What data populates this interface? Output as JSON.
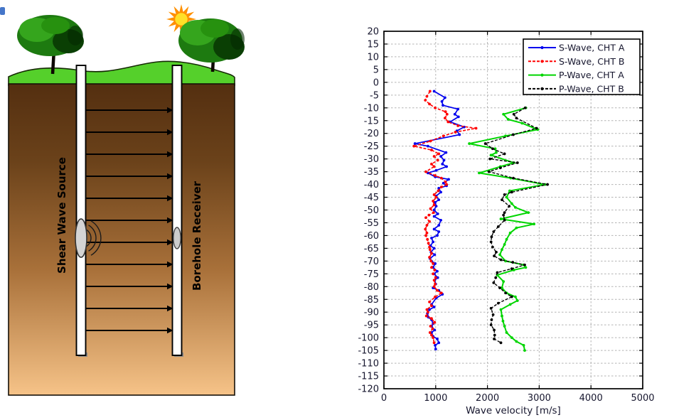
{
  "diagram": {
    "source_label": "Shear Wave Source",
    "receiver_label": "Borehole Receiver",
    "arrow_count": 11,
    "colors": {
      "grass": "#55d02b",
      "soil_top": "#542f10",
      "soil_bottom": "#f6c388",
      "foliage": "#1d7a10",
      "foliage_shadow": "#0a3f04",
      "foliage_highlight": "#35a51d",
      "sun_core": "#ffe028",
      "sun_rays": "#ff9000",
      "borehole_fill": "#ffffff",
      "transducer_fill": "#d4d4d4",
      "corner_mark": "#4576c9"
    }
  },
  "chart_data": {
    "type": "line",
    "title": "",
    "xlabel": "Wave velocity [m/s]",
    "ylabel": "",
    "xlim": [
      0,
      5000
    ],
    "ylim": [
      -120,
      20
    ],
    "x_ticks": [
      0,
      1000,
      2000,
      3000,
      4000,
      5000
    ],
    "y_tick_step": 5,
    "grid": true,
    "legend_position": "top-right",
    "series": [
      {
        "name": "S-Wave, CHT A",
        "color": "#0000ee",
        "dash": "solid",
        "width": 1.7,
        "marker": "dot",
        "points": [
          [
            970,
            -3.5
          ],
          [
            1180,
            -6
          ],
          [
            1120,
            -7.5
          ],
          [
            1140,
            -9
          ],
          [
            1430,
            -10.5
          ],
          [
            1370,
            -12.5
          ],
          [
            1440,
            -13.5
          ],
          [
            1280,
            -15.5
          ],
          [
            1550,
            -17.5
          ],
          [
            1410,
            -19
          ],
          [
            1460,
            -20.5
          ],
          [
            600,
            -24
          ],
          [
            850,
            -25
          ],
          [
            1200,
            -27.5
          ],
          [
            1100,
            -29
          ],
          [
            1160,
            -30.5
          ],
          [
            1130,
            -32
          ],
          [
            1210,
            -33
          ],
          [
            1010,
            -34.5
          ],
          [
            850,
            -35.5
          ],
          [
            990,
            -37
          ],
          [
            1250,
            -38
          ],
          [
            1150,
            -39.5
          ],
          [
            1210,
            -40.5
          ],
          [
            1060,
            -41.5
          ],
          [
            1100,
            -43
          ],
          [
            1010,
            -44.5
          ],
          [
            1060,
            -46
          ],
          [
            990,
            -47
          ],
          [
            1010,
            -48.5
          ],
          [
            970,
            -50
          ],
          [
            1040,
            -51.5
          ],
          [
            970,
            -52.5
          ],
          [
            1100,
            -54
          ],
          [
            1060,
            -56
          ],
          [
            970,
            -57.5
          ],
          [
            1060,
            -58.5
          ],
          [
            1030,
            -60
          ],
          [
            920,
            -61
          ],
          [
            950,
            -62.5
          ],
          [
            900,
            -64
          ],
          [
            970,
            -65
          ],
          [
            910,
            -66.5
          ],
          [
            980,
            -67.5
          ],
          [
            890,
            -69
          ],
          [
            920,
            -70
          ],
          [
            990,
            -71
          ],
          [
            950,
            -72.5
          ],
          [
            1030,
            -74
          ],
          [
            970,
            -75
          ],
          [
            1040,
            -76.5
          ],
          [
            980,
            -77.5
          ],
          [
            1000,
            -79
          ],
          [
            950,
            -80.5
          ],
          [
            1060,
            -81.5
          ],
          [
            1130,
            -83
          ],
          [
            1010,
            -84.5
          ],
          [
            920,
            -87
          ],
          [
            970,
            -88
          ],
          [
            880,
            -89
          ],
          [
            840,
            -90.5
          ],
          [
            860,
            -92
          ],
          [
            920,
            -93
          ],
          [
            950,
            -94.5
          ],
          [
            920,
            -95.5
          ],
          [
            980,
            -97
          ],
          [
            920,
            -98
          ],
          [
            950,
            -99.5
          ],
          [
            1030,
            -100.5
          ],
          [
            1060,
            -102
          ],
          [
            990,
            -103
          ],
          [
            1000,
            -104.5
          ]
        ]
      },
      {
        "name": "S-Wave, CHT B",
        "color": "#ff0000",
        "dash": "dashed",
        "width": 1.6,
        "marker": "dot",
        "points": [
          [
            890,
            -3.5
          ],
          [
            830,
            -5.5
          ],
          [
            800,
            -7
          ],
          [
            880,
            -8.5
          ],
          [
            990,
            -10
          ],
          [
            1190,
            -11.5
          ],
          [
            1220,
            -12.5
          ],
          [
            1180,
            -14
          ],
          [
            1240,
            -15.5
          ],
          [
            1430,
            -17
          ],
          [
            1780,
            -18
          ],
          [
            1380,
            -19.5
          ],
          [
            1150,
            -21
          ],
          [
            900,
            -23
          ],
          [
            580,
            -25
          ],
          [
            920,
            -26.5
          ],
          [
            1060,
            -28
          ],
          [
            970,
            -29
          ],
          [
            1040,
            -30.5
          ],
          [
            920,
            -32
          ],
          [
            970,
            -33
          ],
          [
            810,
            -35
          ],
          [
            990,
            -36.5
          ],
          [
            1110,
            -37.5
          ],
          [
            1190,
            -39
          ],
          [
            1210,
            -40
          ],
          [
            1110,
            -41
          ],
          [
            1050,
            -42.5
          ],
          [
            970,
            -44
          ],
          [
            1010,
            -45
          ],
          [
            950,
            -46.5
          ],
          [
            970,
            -48
          ],
          [
            900,
            -49.5
          ],
          [
            960,
            -51
          ],
          [
            870,
            -52
          ],
          [
            810,
            -53
          ],
          [
            880,
            -54.5
          ],
          [
            830,
            -56
          ],
          [
            800,
            -57.5
          ],
          [
            830,
            -59
          ],
          [
            810,
            -60
          ],
          [
            840,
            -61.5
          ],
          [
            860,
            -63
          ],
          [
            880,
            -64.5
          ],
          [
            890,
            -65.5
          ],
          [
            920,
            -67
          ],
          [
            880,
            -68.5
          ],
          [
            910,
            -70
          ],
          [
            950,
            -71
          ],
          [
            920,
            -72.5
          ],
          [
            980,
            -73.5
          ],
          [
            950,
            -75
          ],
          [
            1000,
            -76.5
          ],
          [
            970,
            -77.5
          ],
          [
            990,
            -79
          ],
          [
            970,
            -80
          ],
          [
            1030,
            -81.5
          ],
          [
            1110,
            -82.5
          ],
          [
            990,
            -84
          ],
          [
            880,
            -86
          ],
          [
            920,
            -87.5
          ],
          [
            830,
            -89
          ],
          [
            850,
            -90
          ],
          [
            820,
            -91.5
          ],
          [
            920,
            -92.5
          ],
          [
            980,
            -94
          ],
          [
            900,
            -95.5
          ],
          [
            940,
            -96.5
          ],
          [
            890,
            -98
          ],
          [
            920,
            -99
          ],
          [
            950,
            -100
          ],
          [
            970,
            -102
          ]
        ]
      },
      {
        "name": "P-Wave, CHT A",
        "color": "#00d500",
        "dash": "solid",
        "width": 2,
        "marker": "dot",
        "points": [
          [
            2740,
            -10
          ],
          [
            2310,
            -12.5
          ],
          [
            2400,
            -14.5
          ],
          [
            2670,
            -16
          ],
          [
            2970,
            -18.5
          ],
          [
            2350,
            -21
          ],
          [
            1650,
            -24
          ],
          [
            2150,
            -26
          ],
          [
            2170,
            -27.5
          ],
          [
            2070,
            -28.5
          ],
          [
            2510,
            -31.5
          ],
          [
            2250,
            -33
          ],
          [
            1840,
            -35.5
          ],
          [
            2450,
            -37.5
          ],
          [
            3110,
            -40
          ],
          [
            2430,
            -42.5
          ],
          [
            2370,
            -45
          ],
          [
            2470,
            -47.5
          ],
          [
            2540,
            -49
          ],
          [
            2790,
            -51
          ],
          [
            2260,
            -53.5
          ],
          [
            2900,
            -55.5
          ],
          [
            2560,
            -57
          ],
          [
            2440,
            -59
          ],
          [
            2370,
            -61.5
          ],
          [
            2330,
            -63.5
          ],
          [
            2280,
            -65.5
          ],
          [
            2240,
            -67.5
          ],
          [
            2350,
            -70
          ],
          [
            2700,
            -71.5
          ],
          [
            2740,
            -72.5
          ],
          [
            2510,
            -73.5
          ],
          [
            2190,
            -75.5
          ],
          [
            2310,
            -78
          ],
          [
            2280,
            -80.5
          ],
          [
            2370,
            -82.5
          ],
          [
            2540,
            -84
          ],
          [
            2580,
            -85.5
          ],
          [
            2440,
            -87
          ],
          [
            2260,
            -89
          ],
          [
            2280,
            -91.5
          ],
          [
            2300,
            -93.5
          ],
          [
            2330,
            -95.5
          ],
          [
            2370,
            -98
          ],
          [
            2470,
            -100
          ],
          [
            2560,
            -101.5
          ],
          [
            2700,
            -103
          ],
          [
            2720,
            -105
          ]
        ]
      },
      {
        "name": "P-Wave, CHT B",
        "color": "#000000",
        "dash": "dashed",
        "width": 1.4,
        "marker": "dot",
        "points": [
          [
            2730,
            -10
          ],
          [
            2510,
            -12.5
          ],
          [
            2560,
            -14
          ],
          [
            2950,
            -18
          ],
          [
            2500,
            -20.5
          ],
          [
            1960,
            -24
          ],
          [
            2100,
            -26
          ],
          [
            2330,
            -28
          ],
          [
            2050,
            -30
          ],
          [
            2580,
            -31.5
          ],
          [
            2250,
            -33.5
          ],
          [
            2030,
            -35
          ],
          [
            2500,
            -37.5
          ],
          [
            3160,
            -40
          ],
          [
            2470,
            -43
          ],
          [
            2330,
            -44
          ],
          [
            2280,
            -46
          ],
          [
            2420,
            -48.5
          ],
          [
            2330,
            -51
          ],
          [
            2310,
            -52
          ],
          [
            2330,
            -54
          ],
          [
            2210,
            -56.5
          ],
          [
            2120,
            -58.5
          ],
          [
            2080,
            -60.5
          ],
          [
            2070,
            -62.5
          ],
          [
            2100,
            -64.5
          ],
          [
            2170,
            -66.5
          ],
          [
            2130,
            -68
          ],
          [
            2260,
            -69.5
          ],
          [
            2490,
            -70.5
          ],
          [
            2720,
            -71.5
          ],
          [
            2470,
            -73
          ],
          [
            2190,
            -74.5
          ],
          [
            2160,
            -76.5
          ],
          [
            2120,
            -78.5
          ],
          [
            2240,
            -80.5
          ],
          [
            2350,
            -82.5
          ],
          [
            2470,
            -84
          ],
          [
            2210,
            -86.5
          ],
          [
            2070,
            -88.5
          ],
          [
            2110,
            -91
          ],
          [
            2080,
            -93
          ],
          [
            2070,
            -95
          ],
          [
            2130,
            -97
          ],
          [
            2140,
            -99
          ],
          [
            2130,
            -100.5
          ],
          [
            2260,
            -102
          ]
        ]
      }
    ]
  }
}
